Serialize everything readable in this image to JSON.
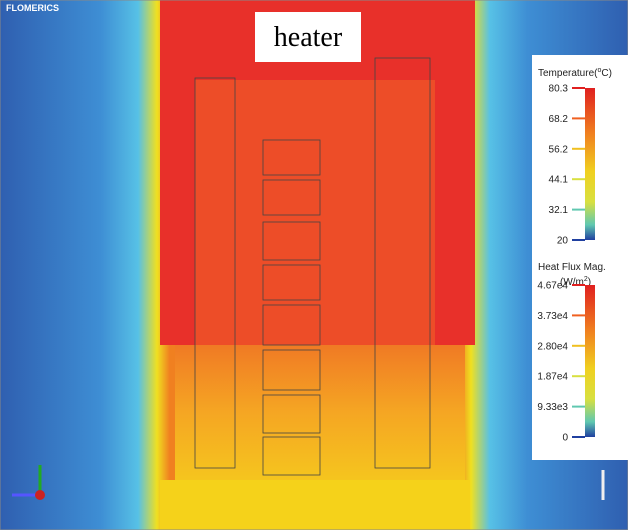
{
  "brand": "FLOMERICS",
  "label": "heater",
  "temperature_legend": {
    "title": [
      "Temperature(",
      "o",
      "C)"
    ],
    "ticks": [
      "80.3",
      "68.2",
      "56.2",
      "44.1",
      "32.1",
      "20"
    ]
  },
  "heat_flux_legend": {
    "title": [
      "Heat Flux Mag.",
      "(W/m",
      "2",
      ")"
    ],
    "ticks": [
      "4.67e4",
      "3.73e4",
      "2.80e4",
      "1.87e4",
      "9.33e3",
      "0"
    ]
  }
}
